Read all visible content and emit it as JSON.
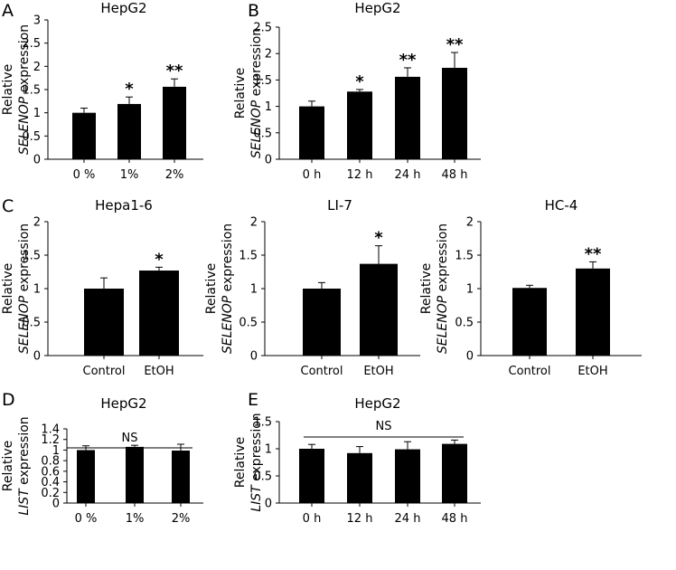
{
  "chart_data": [
    {
      "panel": "A",
      "type": "bar",
      "title": "HepG2",
      "ylabel_line1": "Relative",
      "ylabel_gene": "SELENOP",
      "ylabel_suffix": " expression",
      "ylim": [
        0,
        3
      ],
      "yticks": [
        "0",
        "0.5",
        "1",
        "1.5",
        "2",
        "2.5",
        "3"
      ],
      "categories": [
        "0 %",
        "1%",
        "2%"
      ],
      "values": [
        1.0,
        1.19,
        1.56
      ],
      "errors": [
        0.1,
        0.15,
        0.17
      ],
      "significance": [
        "",
        "*",
        "**"
      ]
    },
    {
      "panel": "B",
      "type": "bar",
      "title": "HepG2",
      "ylabel_line1": "Relative",
      "ylabel_gene": "SELENOP",
      "ylabel_suffix": " expression",
      "ylim": [
        0,
        2.5
      ],
      "yticks": [
        "0",
        "0.5",
        "1",
        "1.5",
        "2",
        "2.5"
      ],
      "categories": [
        "0 h",
        "12 h",
        "24 h",
        "48 h"
      ],
      "values": [
        1.0,
        1.28,
        1.56,
        1.73
      ],
      "errors": [
        0.1,
        0.04,
        0.17,
        0.29
      ],
      "significance": [
        "",
        "*",
        "**",
        "**"
      ]
    },
    {
      "panel": "C",
      "type": "bar",
      "title": "Hepa1-6",
      "ylabel_line1": "Relative",
      "ylabel_gene": "SELENOP",
      "ylabel_suffix": " expression",
      "ylim": [
        0,
        2
      ],
      "yticks": [
        "0",
        "0.5",
        "1",
        "1.5",
        "2"
      ],
      "categories": [
        "Control",
        "EtOH"
      ],
      "values": [
        1.0,
        1.27
      ],
      "errors": [
        0.16,
        0.05
      ],
      "significance": [
        "",
        "*"
      ]
    },
    {
      "panel": "",
      "type": "bar",
      "title": "LI-7",
      "ylabel_line1": "Relative",
      "ylabel_gene": "SELENOP",
      "ylabel_suffix": " expression",
      "ylim": [
        0,
        2
      ],
      "yticks": [
        "0",
        "0.5",
        "1",
        "1.5",
        "2"
      ],
      "categories": [
        "Control",
        "EtOH"
      ],
      "values": [
        1.0,
        1.37
      ],
      "errors": [
        0.09,
        0.27
      ],
      "significance": [
        "",
        "*"
      ]
    },
    {
      "panel": "",
      "type": "bar",
      "title": "HC-4",
      "ylabel_line1": "Relative",
      "ylabel_gene": "SELENOP",
      "ylabel_suffix": " expression",
      "ylim": [
        0,
        2
      ],
      "yticks": [
        "0",
        "0.5",
        "1",
        "1.5",
        "2"
      ],
      "categories": [
        "Control",
        "EtOH"
      ],
      "values": [
        1.01,
        1.3
      ],
      "errors": [
        0.04,
        0.1
      ],
      "significance": [
        "",
        "**"
      ]
    },
    {
      "panel": "D",
      "type": "bar",
      "title": "HepG2",
      "ylabel_line1": "Relative",
      "ylabel_gene": "LIST",
      "ylabel_suffix": " expression",
      "ylim": [
        0,
        1.4
      ],
      "yticks": [
        "0",
        "0.2",
        "0.4",
        "0.6",
        "0.8",
        "1",
        "1.2",
        "1.4"
      ],
      "categories": [
        "0 %",
        "1%",
        "2%"
      ],
      "values": [
        1.0,
        1.06,
        0.99
      ],
      "errors": [
        0.08,
        0.03,
        0.12
      ],
      "significance": [
        "",
        "",
        ""
      ],
      "bracket_label": "NS"
    },
    {
      "panel": "E",
      "type": "bar",
      "title": "HepG2",
      "ylabel_line1": "Relative",
      "ylabel_gene": "LIST",
      "ylabel_suffix": " expression",
      "ylim": [
        0,
        1.5
      ],
      "yticks": [
        "0",
        "0.5",
        "1",
        "1.5"
      ],
      "categories": [
        "0 h",
        "12 h",
        "24 h",
        "48 h"
      ],
      "values": [
        1.0,
        0.92,
        0.99,
        1.09
      ],
      "errors": [
        0.08,
        0.12,
        0.14,
        0.07
      ],
      "significance": [
        "",
        "",
        "",
        ""
      ],
      "bracket_label": "NS"
    }
  ]
}
